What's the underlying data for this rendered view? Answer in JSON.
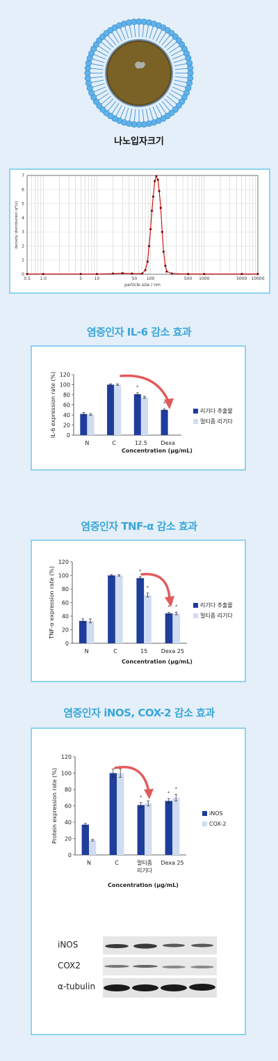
{
  "particle_label": "나노입자크기",
  "sections": [
    {
      "title": "염증인자 IL-6 감소 효과"
    },
    {
      "title": "염증인자 TNF-α 감소 효과"
    },
    {
      "title": "염증인자 iNOS, COX-2 감소 효과"
    }
  ],
  "colors": {
    "dark_bar": "#1f3d9c",
    "light_bar": "#cfdcf1",
    "arrow": "#e25a5a",
    "curve": "#cc0000",
    "heading": "#3aa6d9",
    "frame": "#8ed3ef"
  },
  "blot": {
    "labels": [
      "iNOS",
      "COX2",
      "α-tubulin"
    ]
  },
  "chart_data": [
    {
      "type": "line",
      "xlabel": "particle size / nm",
      "ylabel": "density distribution q*(x)",
      "xscale": "log",
      "xlim": [
        0.5,
        10000
      ],
      "ylim": [
        0,
        7
      ],
      "x_ticks": [
        "0.5",
        "1.0",
        "5",
        "10",
        "50",
        "100",
        "500",
        "1000",
        "5000",
        "10000"
      ],
      "y_ticks": [
        "0",
        "1",
        "2",
        "3",
        "4",
        "5",
        "6",
        "7"
      ],
      "grid": true,
      "points": [
        [
          0.5,
          0.02
        ],
        [
          1,
          0.02
        ],
        [
          5,
          0.02
        ],
        [
          10,
          0.02
        ],
        [
          20,
          0.05
        ],
        [
          30,
          0.08
        ],
        [
          45,
          0.05
        ],
        [
          70,
          0.05
        ],
        [
          80,
          0.3
        ],
        [
          88,
          0.9
        ],
        [
          94,
          2.0
        ],
        [
          100,
          3.2
        ],
        [
          106,
          4.5
        ],
        [
          112,
          5.5
        ],
        [
          120,
          6.6
        ],
        [
          128,
          6.95
        ],
        [
          137,
          6.7
        ],
        [
          145,
          5.9
        ],
        [
          155,
          4.7
        ],
        [
          165,
          3.0
        ],
        [
          175,
          1.6
        ],
        [
          188,
          0.6
        ],
        [
          200,
          0.2
        ],
        [
          250,
          0.05
        ],
        [
          500,
          0.02
        ],
        [
          1000,
          0.02
        ],
        [
          5000,
          0.02
        ],
        [
          10000,
          0.02
        ]
      ]
    },
    {
      "type": "bar",
      "categories": [
        "N",
        "C",
        "12.5",
        "Dexa"
      ],
      "series": [
        {
          "name": "리기다 추출물",
          "values": [
            42,
            100,
            81,
            50
          ],
          "errors": [
            3,
            1.5,
            3,
            2
          ],
          "marks": [
            "",
            "",
            "*",
            "*"
          ]
        },
        {
          "name": "멀티좀 리기다",
          "values": [
            41,
            100,
            75,
            null
          ],
          "errors": [
            1.5,
            1.5,
            2,
            null
          ],
          "marks": [
            "",
            "",
            "",
            ""
          ]
        }
      ],
      "ylabel": "IL-6 expression rate (%)",
      "xlabel": "Concentration (µg/mL)",
      "ylim": [
        0,
        120
      ],
      "y_ticks": [
        "0",
        "20",
        "40",
        "60",
        "80",
        "100",
        "120"
      ],
      "legend": "right"
    },
    {
      "type": "bar",
      "categories": [
        "N",
        "C",
        "15",
        "Dexa 25"
      ],
      "series": [
        {
          "name": "리기다 추출물",
          "values": [
            33,
            100,
            96,
            44
          ],
          "errors": [
            3,
            1,
            2,
            1.5
          ],
          "marks": [
            "",
            "",
            "*",
            "*"
          ]
        },
        {
          "name": "멀티좀 리기다",
          "values": [
            33,
            100,
            71,
            44
          ],
          "errors": [
            3,
            1,
            3,
            2
          ],
          "marks": [
            "",
            "",
            "*",
            "*"
          ]
        }
      ],
      "ylabel": "TNF-α expression rate (%)",
      "xlabel": "Concentration (µg/mL)",
      "ylim": [
        0,
        120
      ],
      "y_ticks": [
        "0",
        "20",
        "40",
        "60",
        "80",
        "100",
        "120"
      ],
      "legend": "right"
    },
    {
      "type": "bar",
      "categories": [
        "N",
        "C",
        "멀티좀\n리기다",
        "Dexa 25"
      ],
      "series": [
        {
          "name": "iNOS",
          "values": [
            37,
            100,
            61,
            66
          ],
          "errors": [
            1.5,
            5,
            3,
            3
          ],
          "marks": [
            "",
            "",
            "*",
            "*"
          ]
        },
        {
          "name": "COX-2",
          "values": [
            18,
            100,
            63,
            70
          ],
          "errors": [
            1,
            5,
            3,
            4
          ],
          "marks": [
            "",
            "",
            "",
            "*"
          ]
        }
      ],
      "ylabel": "Protein expression rate (%)",
      "xlabel": "Concentration (µg/mL)",
      "ylim": [
        0,
        120
      ],
      "y_ticks": [
        "0",
        "20",
        "40",
        "60",
        "80",
        "100",
        "120"
      ],
      "legend": "right"
    }
  ]
}
